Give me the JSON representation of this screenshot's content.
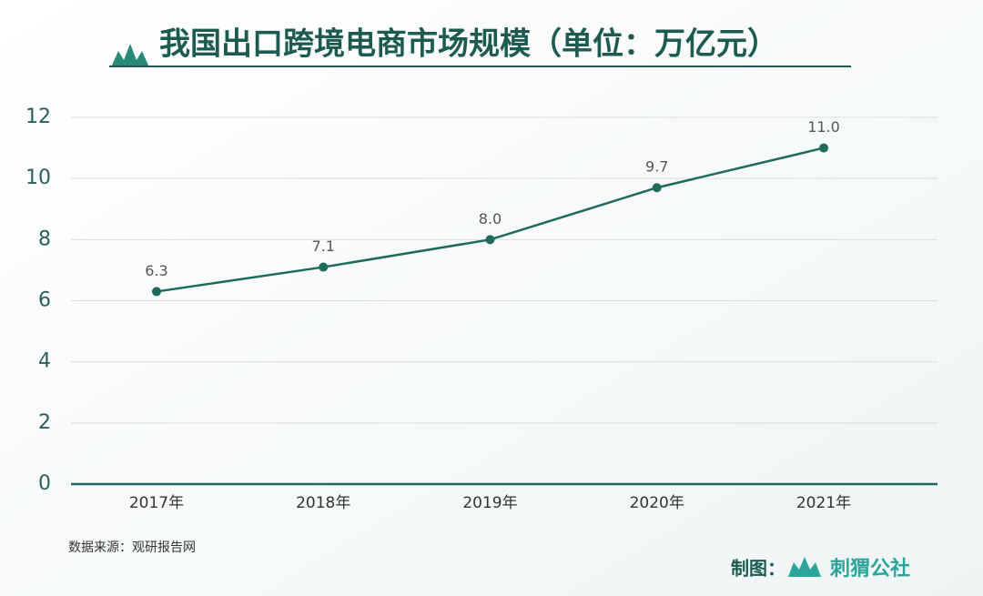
{
  "chart_data": {
    "type": "line",
    "title": "我国出口跨境电商市场规模（单位：万亿元）",
    "categories": [
      "2017年",
      "2018年",
      "2019年",
      "2020年",
      "2021年"
    ],
    "values": [
      6.3,
      7.1,
      8.0,
      9.7,
      11.0
    ],
    "value_labels": [
      "6.3",
      "7.1",
      "8.0",
      "9.7",
      "11.0"
    ],
    "color": "#1e6b5c",
    "ylim": [
      0,
      12
    ],
    "yticks": [
      0,
      2,
      4,
      6,
      8,
      10,
      12
    ],
    "grid": true,
    "source": "数据来源：观研报告网"
  },
  "footer": {
    "credit_label": "制图：",
    "brand": "刺猬公社"
  }
}
